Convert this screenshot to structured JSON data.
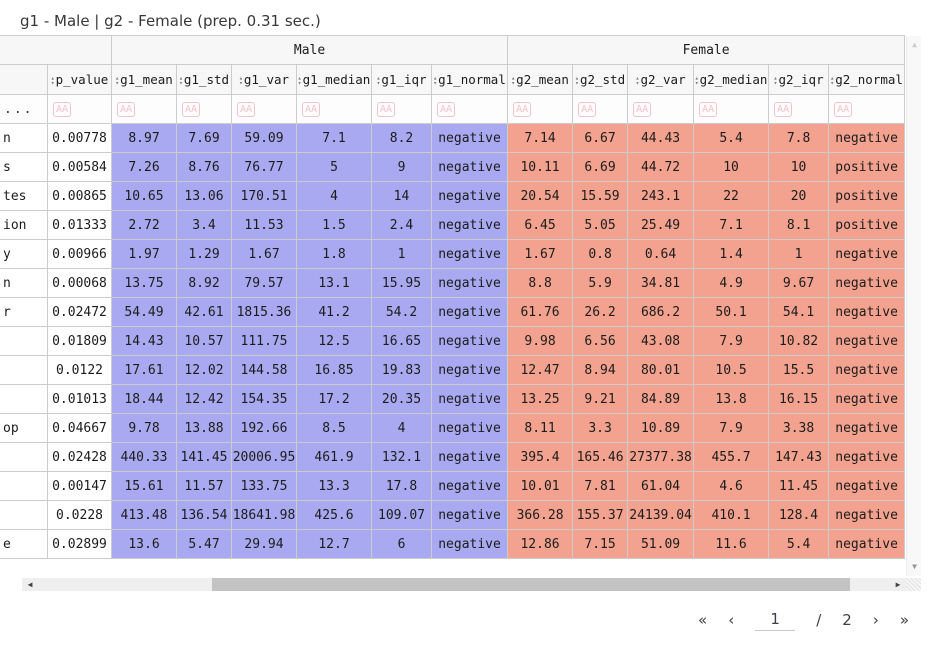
{
  "title": "g1 - Male | g2 - Female (prep. 0.31 sec.)",
  "table": {
    "groups": [
      {
        "label": "Male"
      },
      {
        "label": "Female"
      }
    ],
    "columns": [
      "p_value",
      "g1_mean",
      "g1_std",
      "g1_var",
      "g1_median",
      "g1_iqr",
      "g1_normal",
      "g2_mean",
      "g2_std",
      "g2_var",
      "g2_median",
      "g2_iqr",
      "g2_normal"
    ],
    "filter_ellipsis": "...",
    "filter_badge": "AA",
    "rows": [
      {
        "name": "n",
        "cells": [
          "0.00778",
          "8.97",
          "7.69",
          "59.09",
          "7.1",
          "8.2",
          "negative",
          "7.14",
          "6.67",
          "44.43",
          "5.4",
          "7.8",
          "negative"
        ]
      },
      {
        "name": "s",
        "cells": [
          "0.00584",
          "7.26",
          "8.76",
          "76.77",
          "5",
          "9",
          "negative",
          "10.11",
          "6.69",
          "44.72",
          "10",
          "10",
          "positive"
        ]
      },
      {
        "name": "tes",
        "cells": [
          "0.00865",
          "10.65",
          "13.06",
          "170.51",
          "4",
          "14",
          "negative",
          "20.54",
          "15.59",
          "243.1",
          "22",
          "20",
          "positive"
        ]
      },
      {
        "name": "ion",
        "cells": [
          "0.01333",
          "2.72",
          "3.4",
          "11.53",
          "1.5",
          "2.4",
          "negative",
          "6.45",
          "5.05",
          "25.49",
          "7.1",
          "8.1",
          "positive"
        ]
      },
      {
        "name": "y",
        "cells": [
          "0.00966",
          "1.97",
          "1.29",
          "1.67",
          "1.8",
          "1",
          "negative",
          "1.67",
          "0.8",
          "0.64",
          "1.4",
          "1",
          "negative"
        ]
      },
      {
        "name": "n",
        "cells": [
          "0.00068",
          "13.75",
          "8.92",
          "79.57",
          "13.1",
          "15.95",
          "negative",
          "8.8",
          "5.9",
          "34.81",
          "4.9",
          "9.67",
          "negative"
        ]
      },
      {
        "name": "r",
        "cells": [
          "0.02472",
          "54.49",
          "42.61",
          "1815.36",
          "41.2",
          "54.2",
          "negative",
          "61.76",
          "26.2",
          "686.2",
          "50.1",
          "54.1",
          "negative"
        ]
      },
      {
        "name": "",
        "cells": [
          "0.01809",
          "14.43",
          "10.57",
          "111.75",
          "12.5",
          "16.65",
          "negative",
          "9.98",
          "6.56",
          "43.08",
          "7.9",
          "10.82",
          "negative"
        ]
      },
      {
        "name": "",
        "cells": [
          "0.0122",
          "17.61",
          "12.02",
          "144.58",
          "16.85",
          "19.83",
          "negative",
          "12.47",
          "8.94",
          "80.01",
          "10.5",
          "15.5",
          "negative"
        ]
      },
      {
        "name": "",
        "cells": [
          "0.01013",
          "18.44",
          "12.42",
          "154.35",
          "17.2",
          "20.35",
          "negative",
          "13.25",
          "9.21",
          "84.89",
          "13.8",
          "16.15",
          "negative"
        ]
      },
      {
        "name": "op",
        "cells": [
          "0.04667",
          "9.78",
          "13.88",
          "192.66",
          "8.5",
          "4",
          "negative",
          "8.11",
          "3.3",
          "10.89",
          "7.9",
          "3.38",
          "negative"
        ]
      },
      {
        "name": "",
        "cells": [
          "0.02428",
          "440.33",
          "141.45",
          "20006.95",
          "461.9",
          "132.1",
          "negative",
          "395.4",
          "165.46",
          "27377.38",
          "455.7",
          "147.43",
          "negative"
        ]
      },
      {
        "name": "",
        "cells": [
          "0.00147",
          "15.61",
          "11.57",
          "133.75",
          "13.3",
          "17.8",
          "negative",
          "10.01",
          "7.81",
          "61.04",
          "4.6",
          "11.45",
          "negative"
        ]
      },
      {
        "name": "",
        "cells": [
          "0.0228",
          "413.48",
          "136.54",
          "18641.98",
          "425.6",
          "109.07",
          "negative",
          "366.28",
          "155.37",
          "24139.04",
          "410.1",
          "128.4",
          "negative"
        ]
      },
      {
        "name": "e",
        "cells": [
          "0.02899",
          "13.6",
          "5.47",
          "29.94",
          "12.7",
          "6",
          "negative",
          "12.86",
          "7.15",
          "51.09",
          "11.6",
          "5.4",
          "negative"
        ]
      }
    ]
  },
  "colors": {
    "male_fill": "#a9a9f1",
    "female_fill": "#f2a28e",
    "filter_badge": "#f2c3cc",
    "header_bg": "#f7f7f7"
  },
  "icons": {
    "sort_up": "▴",
    "sort_down": "▾",
    "scroll_left": "◀",
    "scroll_right": "▶",
    "scroll_up": "▲",
    "scroll_down": "▼"
  },
  "pagination": {
    "first_label": "«",
    "prev_label": "‹",
    "page_value": "1",
    "separator": "/",
    "total_pages": "2",
    "next_label": "›",
    "last_label": "»"
  }
}
